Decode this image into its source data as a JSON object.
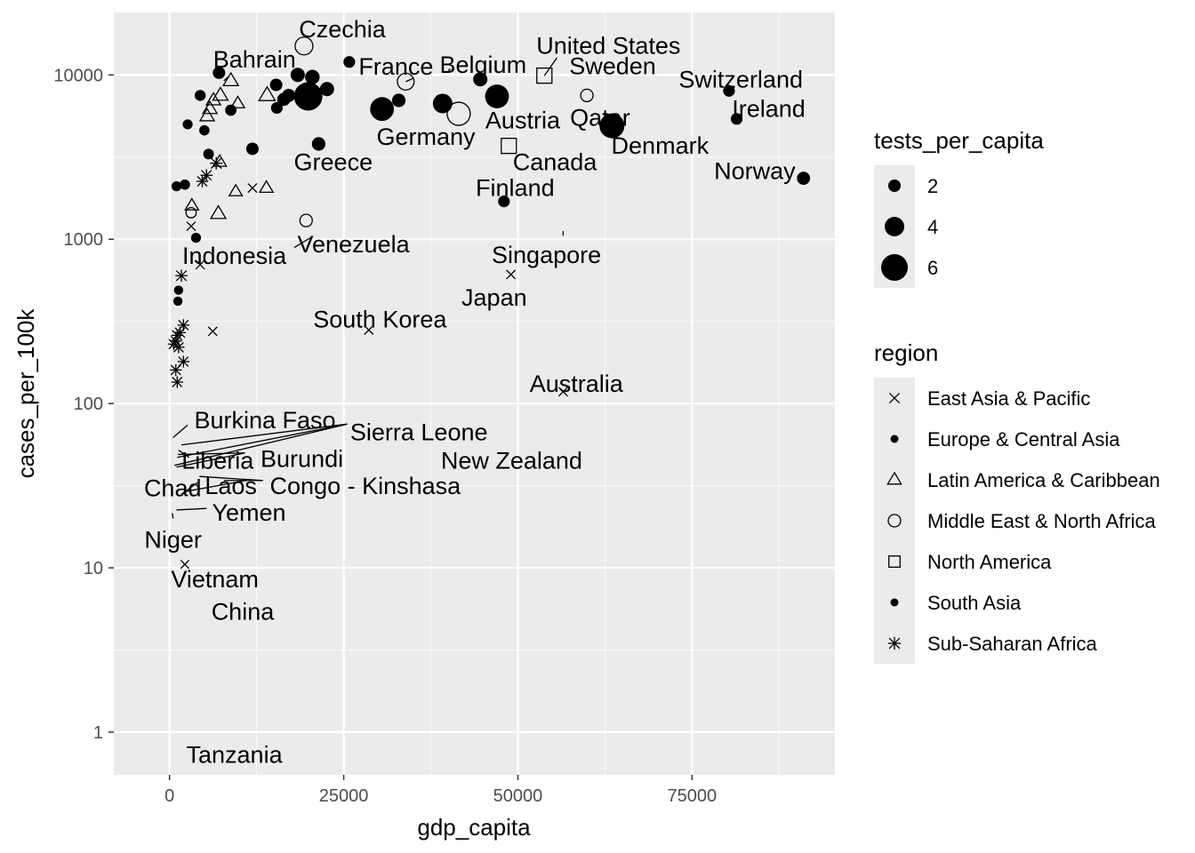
{
  "chart_data": {
    "type": "scatter",
    "title": "",
    "xlabel": "gdp_capita",
    "ylabel": "cases_per_100k",
    "x_scale": "linear",
    "y_scale": "log10",
    "xlim": [
      -8000,
      95500
    ],
    "ylim": [
      0.55,
      24000
    ],
    "x_ticks": [
      0,
      25000,
      50000,
      75000
    ],
    "x_tick_labels": [
      "0",
      "25000",
      "50000",
      "75000"
    ],
    "y_ticks": [
      1,
      10,
      100,
      1000,
      10000
    ],
    "y_tick_labels": [
      "1",
      "10",
      "100",
      "1000",
      "10000"
    ],
    "grid": true,
    "background": "#ebebeb",
    "legend": {
      "position": "right",
      "size_title": "tests_per_capita",
      "size_entries": [
        {
          "label": "2",
          "value": 2
        },
        {
          "label": "4",
          "value": 4
        },
        {
          "label": "6",
          "value": 6
        }
      ],
      "shape_title": "region",
      "shape_entries": [
        {
          "label": "East Asia & Pacific",
          "shape": "cross"
        },
        {
          "label": "Europe & Central Asia",
          "shape": "dot"
        },
        {
          "label": "Latin America & Caribbean",
          "shape": "triangle"
        },
        {
          "label": "Middle East & North Africa",
          "shape": "circle-open"
        },
        {
          "label": "North America",
          "shape": "square-open"
        },
        {
          "label": "South Asia",
          "shape": "dot"
        },
        {
          "label": "Sub-Saharan Africa",
          "shape": "asterisk"
        }
      ]
    },
    "points": [
      {
        "x": 19300,
        "y": 15000,
        "shape": "circle-open",
        "size": 3.5
      },
      {
        "x": 7100,
        "y": 10300,
        "shape": "dot",
        "size": 2
      },
      {
        "x": 5800,
        "y": 6200,
        "shape": "triangle",
        "size": 2
      },
      {
        "x": 6300,
        "y": 7000,
        "shape": "triangle",
        "size": 2
      },
      {
        "x": 7300,
        "y": 7500,
        "shape": "triangle",
        "size": 2.2
      },
      {
        "x": 8800,
        "y": 9200,
        "shape": "triangle",
        "size": 2.2
      },
      {
        "x": 9800,
        "y": 6700,
        "shape": "triangle",
        "size": 1.8
      },
      {
        "x": 14000,
        "y": 7500,
        "shape": "triangle",
        "size": 2.5
      },
      {
        "x": 5400,
        "y": 5600,
        "shape": "triangle",
        "size": 2
      },
      {
        "x": 2600,
        "y": 5000,
        "shape": "dot",
        "size": 1.3
      },
      {
        "x": 4400,
        "y": 7500,
        "shape": "dot",
        "size": 1.6
      },
      {
        "x": 5000,
        "y": 4600,
        "shape": "dot",
        "size": 1.4
      },
      {
        "x": 8800,
        "y": 6100,
        "shape": "dot",
        "size": 1.7
      },
      {
        "x": 15300,
        "y": 8700,
        "shape": "dot",
        "size": 2
      },
      {
        "x": 15400,
        "y": 6300,
        "shape": "dot",
        "size": 1.8
      },
      {
        "x": 16400,
        "y": 7100,
        "shape": "dot",
        "size": 2.2
      },
      {
        "x": 17100,
        "y": 7500,
        "shape": "dot",
        "size": 2.2
      },
      {
        "x": 18400,
        "y": 10000,
        "shape": "dot",
        "size": 2.5
      },
      {
        "x": 19900,
        "y": 7400,
        "shape": "dot",
        "size": 6.5
      },
      {
        "x": 20500,
        "y": 9700,
        "shape": "dot",
        "size": 2.6
      },
      {
        "x": 22600,
        "y": 8200,
        "shape": "dot",
        "size": 2.5
      },
      {
        "x": 21400,
        "y": 3800,
        "shape": "dot",
        "size": 2.3
      },
      {
        "x": 25800,
        "y": 12000,
        "shape": "dot",
        "size": 1.8
      },
      {
        "x": 30500,
        "y": 6200,
        "shape": "dot",
        "size": 5.2
      },
      {
        "x": 32900,
        "y": 7000,
        "shape": "dot",
        "size": 2.3
      },
      {
        "x": 33900,
        "y": 9100,
        "shape": "circle-open",
        "size": 3.2
      },
      {
        "x": 39200,
        "y": 6700,
        "shape": "dot",
        "size": 4
      },
      {
        "x": 41500,
        "y": 5800,
        "shape": "circle-open",
        "size": 5
      },
      {
        "x": 44600,
        "y": 9400,
        "shape": "dot",
        "size": 2.5
      },
      {
        "x": 47000,
        "y": 7400,
        "shape": "dot",
        "size": 5.2
      },
      {
        "x": 48000,
        "y": 1700,
        "shape": "dot",
        "size": 1.8
      },
      {
        "x": 48700,
        "y": 3700,
        "shape": "square-open",
        "size": 3
      },
      {
        "x": 53800,
        "y": 9900,
        "shape": "square-open",
        "size": 3
      },
      {
        "x": 59900,
        "y": 7500,
        "shape": "circle-open",
        "size": 2
      },
      {
        "x": 63500,
        "y": 4900,
        "shape": "dot",
        "size": 5.5
      },
      {
        "x": 80300,
        "y": 8000,
        "shape": "dot",
        "size": 1.8
      },
      {
        "x": 81400,
        "y": 5400,
        "shape": "dot",
        "size": 1.8
      },
      {
        "x": 91000,
        "y": 2350,
        "shape": "dot",
        "size": 2.2
      },
      {
        "x": 11900,
        "y": 3550,
        "shape": "dot",
        "size": 2
      },
      {
        "x": 5600,
        "y": 3300,
        "shape": "dot",
        "size": 1.5
      },
      {
        "x": 6700,
        "y": 2900,
        "shape": "asterisk",
        "size": 1.8
      },
      {
        "x": 7200,
        "y": 2950,
        "shape": "triangle",
        "size": 1.8
      },
      {
        "x": 5300,
        "y": 2450,
        "shape": "asterisk",
        "size": 1.7
      },
      {
        "x": 4700,
        "y": 2250,
        "shape": "asterisk",
        "size": 1.6
      },
      {
        "x": 1000,
        "y": 2100,
        "shape": "dot",
        "size": 1.3
      },
      {
        "x": 2200,
        "y": 2150,
        "shape": "dot",
        "size": 1.4
      },
      {
        "x": 9500,
        "y": 1950,
        "shape": "triangle",
        "size": 1.7
      },
      {
        "x": 11900,
        "y": 2050,
        "shape": "cross",
        "size": 1.5
      },
      {
        "x": 13900,
        "y": 2050,
        "shape": "triangle",
        "size": 1.8
      },
      {
        "x": 3200,
        "y": 1600,
        "shape": "triangle",
        "size": 1.8
      },
      {
        "x": 3100,
        "y": 1450,
        "shape": "circle-open",
        "size": 1.4
      },
      {
        "x": 7000,
        "y": 1430,
        "shape": "triangle",
        "size": 2.2
      },
      {
        "x": 3100,
        "y": 1200,
        "shape": "cross",
        "size": 1.5
      },
      {
        "x": 3800,
        "y": 1020,
        "shape": "dot",
        "size": 1.3
      },
      {
        "x": 19600,
        "y": 1300,
        "shape": "circle-open",
        "size": 2
      },
      {
        "x": 4400,
        "y": 700,
        "shape": "cross",
        "size": 1.5
      },
      {
        "x": 1700,
        "y": 600,
        "shape": "asterisk",
        "size": 1.7
      },
      {
        "x": 1300,
        "y": 490,
        "shape": "dot",
        "size": 1.1
      },
      {
        "x": 1200,
        "y": 420,
        "shape": "dot",
        "size": 1.1
      },
      {
        "x": 49000,
        "y": 610,
        "shape": "cross",
        "size": 1.5
      },
      {
        "x": 6200,
        "y": 275,
        "shape": "cross",
        "size": 1.5
      },
      {
        "x": 28600,
        "y": 280,
        "shape": "cross",
        "size": 1.5
      },
      {
        "x": 2000,
        "y": 300,
        "shape": "asterisk",
        "size": 1.6
      },
      {
        "x": 1500,
        "y": 270,
        "shape": "asterisk",
        "size": 1.6
      },
      {
        "x": 1100,
        "y": 260,
        "shape": "asterisk",
        "size": 1.6
      },
      {
        "x": 900,
        "y": 240,
        "shape": "asterisk",
        "size": 1.6
      },
      {
        "x": 600,
        "y": 230,
        "shape": "asterisk",
        "size": 1.6
      },
      {
        "x": 1300,
        "y": 220,
        "shape": "asterisk",
        "size": 1.6
      },
      {
        "x": 2000,
        "y": 180,
        "shape": "asterisk",
        "size": 1.6
      },
      {
        "x": 900,
        "y": 160,
        "shape": "asterisk",
        "size": 1.6
      },
      {
        "x": 1100,
        "y": 135,
        "shape": "asterisk",
        "size": 1.6
      },
      {
        "x": 56500,
        "y": 118,
        "shape": "cross",
        "size": 1.5
      },
      {
        "x": 2200,
        "y": 10.5,
        "shape": "cross",
        "size": 1.3
      }
    ],
    "labels": [
      {
        "text": "Czechia",
        "x": 24800,
        "y": 19000
      },
      {
        "text": "Bahrain",
        "x": 12200,
        "y": 12400
      },
      {
        "text": "France",
        "x": 32500,
        "y": 11200
      },
      {
        "text": "Belgium",
        "x": 45000,
        "y": 11500
      },
      {
        "text": "United States",
        "x": 63000,
        "y": 15000
      },
      {
        "text": "Sweden",
        "x": 63600,
        "y": 11300
      },
      {
        "text": "Switzerland",
        "x": 82000,
        "y": 9400
      },
      {
        "text": "Ireland",
        "x": 86000,
        "y": 6200
      },
      {
        "text": "Austria",
        "x": 50700,
        "y": 5300
      },
      {
        "text": "Qatar",
        "x": 61800,
        "y": 5500
      },
      {
        "text": "Germany",
        "x": 36800,
        "y": 4200
      },
      {
        "text": "Denmark",
        "x": 70400,
        "y": 3700
      },
      {
        "text": "Greece",
        "x": 23500,
        "y": 2950
      },
      {
        "text": "Canada",
        "x": 55300,
        "y": 2950
      },
      {
        "text": "Norway",
        "x": 84000,
        "y": 2600
      },
      {
        "text": "Finland",
        "x": 49600,
        "y": 2050
      },
      {
        "text": "Venezuela",
        "x": 26400,
        "y": 930
      },
      {
        "text": "Indonesia",
        "x": 9300,
        "y": 790
      },
      {
        "text": "Singapore",
        "x": 54100,
        "y": 800
      },
      {
        "text": "Japan",
        "x": 46600,
        "y": 440
      },
      {
        "text": "South Korea",
        "x": 30200,
        "y": 325
      },
      {
        "text": "Australia",
        "x": 58400,
        "y": 132
      },
      {
        "text": "Burkina Faso",
        "x": 13700,
        "y": 79
      },
      {
        "text": "Sierra Leone",
        "x": 35800,
        "y": 67
      },
      {
        "text": "Liberia",
        "x": 6900,
        "y": 45
      },
      {
        "text": "Burundi",
        "x": 19000,
        "y": 46
      },
      {
        "text": "New Zealand",
        "x": 49100,
        "y": 45
      },
      {
        "text": "Chad",
        "x": 450,
        "y": 30.5
      },
      {
        "text": "Laos",
        "x": 8800,
        "y": 31.5
      },
      {
        "text": "Congo - Kinshasa",
        "x": 28100,
        "y": 31.5
      },
      {
        "text": "Yemen",
        "x": 11400,
        "y": 21.6
      },
      {
        "text": "Niger",
        "x": 500,
        "y": 14.8
      },
      {
        "text": "Vietnam",
        "x": 6500,
        "y": 8.5
      },
      {
        "text": "China",
        "x": 10500,
        "y": 5.4
      },
      {
        "text": "Tanzania",
        "x": 9300,
        "y": 0.73
      }
    ],
    "leaders": [
      {
        "from": [
          55600,
          12700
        ],
        "to": [
          53800,
          9900
        ]
      },
      {
        "from": [
          34900,
          9500
        ],
        "to": [
          33900,
          9100
        ]
      },
      {
        "from": [
          40300,
          10900
        ],
        "to": [
          40000,
          10600
        ]
      },
      {
        "from": [
          8500,
          9800
        ],
        "to": [
          7800,
          9200
        ]
      },
      {
        "from": [
          56500,
          1050
        ],
        "to": [
          56500,
          1120
        ]
      },
      {
        "from": [
          3600,
          740
        ],
        "to": [
          4100,
          710
        ]
      },
      {
        "from": [
          17900,
          890
        ],
        "to": [
          20200,
          1020
        ]
      },
      {
        "from": [
          2600,
          74
        ],
        "to": [
          500,
          62
        ]
      },
      {
        "from": [
          25500,
          75
        ],
        "to": [
          1700,
          56
        ]
      },
      {
        "from": [
          25500,
          75
        ],
        "to": [
          1100,
          47
        ]
      },
      {
        "from": [
          25500,
          75
        ],
        "to": [
          700,
          42
        ]
      },
      {
        "from": [
          10800,
          50
        ],
        "to": [
          1000,
          41
        ]
      },
      {
        "from": [
          10800,
          50
        ],
        "to": [
          1200,
          49
        ]
      },
      {
        "from": [
          2800,
          47
        ],
        "to": [
          1300,
          52
        ]
      },
      {
        "from": [
          1700,
          28
        ],
        "to": [
          4000,
          33
        ]
      },
      {
        "from": [
          13400,
          34
        ],
        "to": [
          4300,
          36
        ]
      },
      {
        "from": [
          13400,
          34
        ],
        "to": [
          7800,
          34
        ]
      },
      {
        "from": [
          11000,
          34
        ],
        "to": [
          2000,
          29
        ]
      },
      {
        "from": [
          5300,
          23
        ],
        "to": [
          1000,
          22.5
        ]
      },
      {
        "from": [
          500,
          20
        ],
        "to": [
          400,
          21.5
        ]
      }
    ]
  }
}
